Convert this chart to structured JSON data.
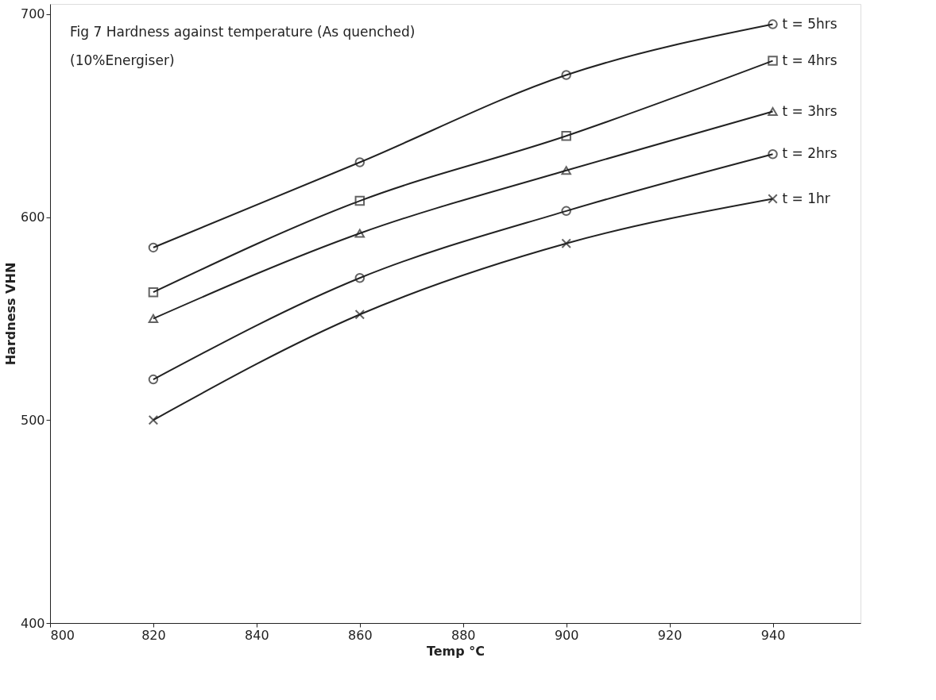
{
  "chart_data": {
    "type": "line",
    "title": "Fig 7  Hardness against temperature (As quenched)",
    "subtitle": "(10%Energiser)",
    "xlabel": "Temp °C",
    "ylabel": "Hardness VHN",
    "x": [
      820,
      860,
      900,
      940
    ],
    "xlim": [
      800,
      957
    ],
    "xticks": [
      800,
      820,
      840,
      860,
      880,
      900,
      920,
      940
    ],
    "ylim": [
      400,
      705
    ],
    "yticks": [
      400,
      500,
      600,
      700
    ],
    "grid": false,
    "legend": false,
    "line_style": "solid",
    "series": [
      {
        "name": "t = 5hrs",
        "color": "#222222",
        "marker": "circle",
        "values": [
          585,
          627,
          670,
          695
        ]
      },
      {
        "name": "t = 4hrs",
        "color": "#222222",
        "marker": "square",
        "values": [
          563,
          608,
          640,
          677
        ]
      },
      {
        "name": "t = 3hrs",
        "color": "#222222",
        "marker": "triangle",
        "values": [
          550,
          592,
          623,
          652
        ]
      },
      {
        "name": "t = 2hrs",
        "color": "#222222",
        "marker": "circle",
        "values": [
          520,
          570,
          603,
          631
        ]
      },
      {
        "name": "t = 1hr",
        "color": "#222222",
        "marker": "cross",
        "values": [
          500,
          552,
          587,
          609
        ]
      }
    ]
  }
}
